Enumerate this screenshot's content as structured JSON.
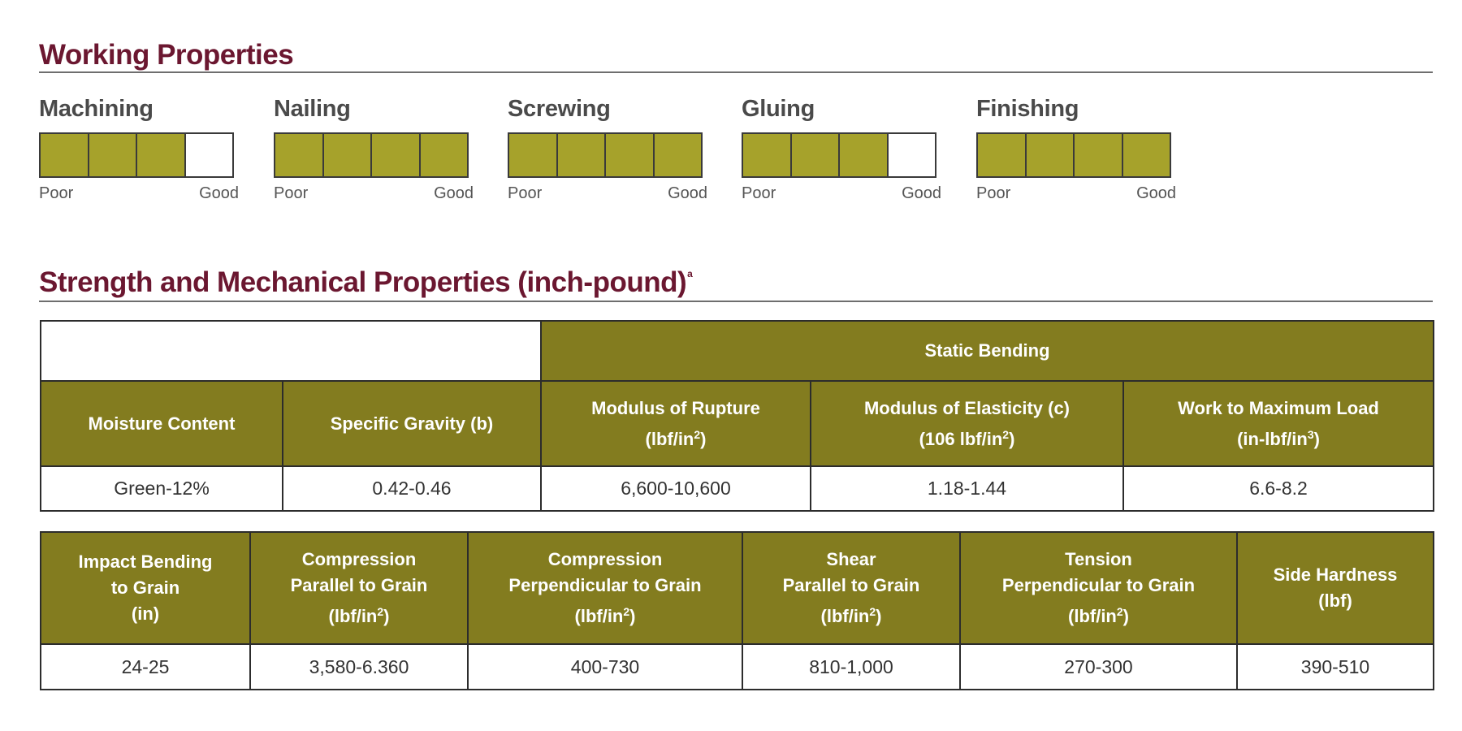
{
  "working_properties": {
    "title": "Working Properties",
    "scale_low": "Poor",
    "scale_high": "Good",
    "ratings": [
      {
        "label": "Machining",
        "filled": 3,
        "max": 4
      },
      {
        "label": "Nailing",
        "filled": 4,
        "max": 4
      },
      {
        "label": "Screwing",
        "filled": 4,
        "max": 4
      },
      {
        "label": "Gluing",
        "filled": 3,
        "max": 4
      },
      {
        "label": "Finishing",
        "filled": 4,
        "max": 4
      }
    ]
  },
  "strength": {
    "title": "Strength and Mechanical Properties (inch-pound)",
    "title_sup": "a",
    "table1": {
      "group_header": "Static Bending",
      "headers": [
        {
          "lines": [
            "Moisture Content"
          ]
        },
        {
          "lines": [
            "Specific Gravity (b)"
          ]
        },
        {
          "lines": [
            "Modulus of Rupture",
            "(lbf/in2)"
          ]
        },
        {
          "lines": [
            "Modulus of Elasticity (c)",
            "(106 lbf/in2)"
          ]
        },
        {
          "lines": [
            "Work to Maximum Load",
            "(in-lbf/in3)"
          ]
        }
      ],
      "row": [
        "Green-12%",
        "0.42-0.46",
        "6,600-10,600",
        "1.18-1.44",
        "6.6-8.2"
      ]
    },
    "table2": {
      "headers": [
        {
          "lines": [
            "Impact Bending",
            "to Grain",
            "(in)"
          ]
        },
        {
          "lines": [
            "Compression",
            "Parallel to Grain",
            "(lbf/in2)"
          ]
        },
        {
          "lines": [
            "Compression",
            "Perpendicular to Grain",
            "(lbf/in2)"
          ]
        },
        {
          "lines": [
            "Shear",
            "Parallel to Grain",
            "(lbf/in2)"
          ]
        },
        {
          "lines": [
            "Tension",
            "Perpendicular to Grain",
            "(lbf/in2)"
          ]
        },
        {
          "lines": [
            "Side Hardness",
            "(lbf)"
          ]
        }
      ],
      "row": [
        "24-25",
        "3,580-6.360",
        "400-730",
        "810-1,000",
        "270-300",
        "390-510"
      ]
    }
  },
  "colors": {
    "title": "#6b1730",
    "header_bg": "#837c1f",
    "rating_fill": "#a6a22b"
  }
}
